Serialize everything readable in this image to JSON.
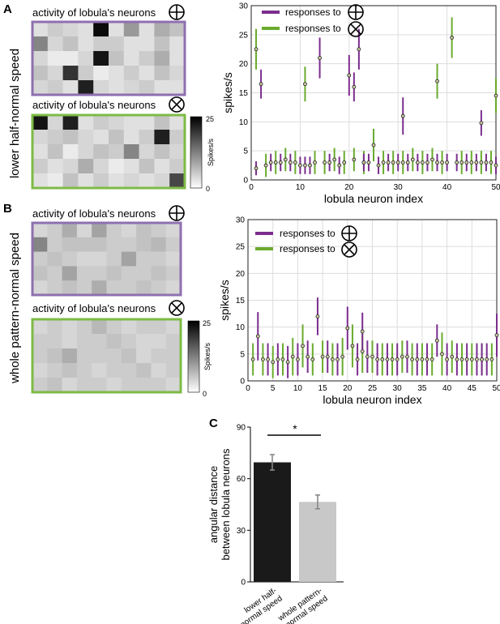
{
  "panels": {
    "a": {
      "letter": "A",
      "row_label": "lower half-normal speed"
    },
    "b": {
      "letter": "B",
      "row_label": "whole pattern-normal speed"
    },
    "c": {
      "letter": "C"
    }
  },
  "colors": {
    "purple": "#7b2d8e",
    "green": "#6aab2e",
    "dark_bar": "#1a1a1a",
    "light_bar": "#c8c8c8"
  },
  "heatmap_titles": {
    "plus": "activity of lobula's neurons",
    "cross": "activity of lobula's neurons"
  },
  "colorbar": {
    "label": "Spikes/s",
    "max_label": "25",
    "min_label": "0"
  },
  "legend": {
    "plus": "responses to",
    "cross": "responses to"
  },
  "chart_data": [
    {
      "id": "A_heatmap_plus",
      "type": "heatmap",
      "rows": 5,
      "cols": 10,
      "vmin": 0,
      "vmax": 25,
      "values": [
        [
          3,
          5,
          4,
          3,
          24,
          3,
          10,
          3,
          8,
          6
        ],
        [
          12,
          4,
          6,
          3,
          5,
          5,
          3,
          3,
          6,
          3
        ],
        [
          4,
          2,
          2,
          4,
          23,
          6,
          3,
          5,
          8,
          3
        ],
        [
          6,
          4,
          20,
          5,
          2,
          3,
          5,
          3,
          6,
          4
        ],
        [
          4,
          5,
          3,
          22,
          4,
          3,
          4,
          5,
          3,
          3
        ]
      ]
    },
    {
      "id": "A_heatmap_cross",
      "type": "heatmap",
      "rows": 5,
      "cols": 10,
      "vmin": 0,
      "vmax": 25,
      "values": [
        [
          23,
          4,
          22,
          3,
          5,
          4,
          3,
          3,
          6,
          3
        ],
        [
          4,
          5,
          6,
          4,
          3,
          6,
          3,
          5,
          22,
          5
        ],
        [
          3,
          6,
          2,
          4,
          6,
          5,
          12,
          4,
          6,
          4
        ],
        [
          5,
          3,
          4,
          8,
          4,
          2,
          3,
          6,
          3,
          5
        ],
        [
          3,
          2,
          6,
          3,
          5,
          3,
          4,
          3,
          4,
          18
        ]
      ]
    },
    {
      "id": "B_heatmap_plus",
      "type": "heatmap",
      "rows": 5,
      "cols": 10,
      "vmin": 0,
      "vmax": 25,
      "values": [
        [
          4,
          5,
          8,
          4,
          9,
          5,
          4,
          6,
          5,
          4
        ],
        [
          12,
          5,
          6,
          6,
          6,
          5,
          5,
          6,
          7,
          5
        ],
        [
          5,
          6,
          5,
          4,
          4,
          5,
          9,
          5,
          5,
          4
        ],
        [
          6,
          5,
          9,
          5,
          5,
          6,
          5,
          5,
          6,
          5
        ],
        [
          4,
          5,
          6,
          5,
          8,
          5,
          5,
          6,
          5,
          4
        ]
      ]
    },
    {
      "id": "B_heatmap_cross",
      "type": "heatmap",
      "rows": 5,
      "cols": 10,
      "vmin": 0,
      "vmax": 25,
      "values": [
        [
          4,
          5,
          4,
          5,
          7,
          5,
          4,
          5,
          5,
          4
        ],
        [
          5,
          5,
          4,
          5,
          5,
          6,
          5,
          4,
          4,
          5
        ],
        [
          5,
          6,
          8,
          5,
          5,
          5,
          6,
          4,
          5,
          5
        ],
        [
          4,
          5,
          6,
          5,
          4,
          5,
          5,
          6,
          4,
          5
        ],
        [
          5,
          6,
          4,
          5,
          5,
          4,
          5,
          5,
          5,
          4
        ]
      ]
    },
    {
      "id": "A_scatter",
      "type": "scatter",
      "xlabel": "lobula neuron index",
      "ylabel": "spikes/s",
      "xlim": [
        0,
        50
      ],
      "ylim": [
        0,
        30
      ],
      "xticks": [
        0,
        10,
        20,
        30,
        40,
        50
      ],
      "yticks": [
        0,
        5,
        10,
        15,
        20,
        25,
        30
      ],
      "series": [
        {
          "name": "responses to plus",
          "color": "purple",
          "x": [
            1,
            2,
            4,
            6,
            8,
            10,
            11,
            12,
            14,
            16,
            18,
            20,
            21,
            22,
            23,
            24,
            26,
            28,
            30,
            31,
            32,
            34,
            36,
            38,
            40,
            42,
            44,
            46,
            47,
            48,
            50
          ],
          "y": [
            2,
            16.5,
            3,
            3,
            3,
            2.5,
            2.5,
            2.5,
            21,
            3,
            2.5,
            18,
            16,
            22.5,
            3,
            3,
            2.5,
            3,
            3,
            11,
            3,
            3,
            3,
            3,
            3,
            3,
            3,
            3,
            9.8,
            3,
            2.5
          ],
          "err": [
            1.2,
            2.5,
            1.5,
            1.5,
            1.5,
            1.5,
            1.5,
            1.5,
            3.5,
            1.5,
            1.5,
            3.5,
            2.5,
            3.5,
            1.5,
            1.5,
            1.5,
            1.5,
            1.5,
            3.2,
            1.5,
            1.5,
            1.5,
            1.5,
            1.5,
            1.5,
            1.5,
            1.5,
            2.2,
            1.5,
            1.5
          ]
        },
        {
          "name": "responses to cross",
          "color": "green",
          "x": [
            1,
            3,
            5,
            7,
            9,
            11,
            13,
            15,
            17,
            19,
            21,
            23,
            25,
            27,
            29,
            31,
            33,
            35,
            37,
            38,
            39,
            41,
            43,
            45,
            47,
            49,
            50
          ],
          "y": [
            22.5,
            2.5,
            3,
            3.5,
            3,
            16.5,
            3,
            3,
            3.5,
            3,
            3.5,
            3,
            6,
            3,
            3,
            3,
            3.5,
            3,
            3.5,
            17,
            3,
            24.5,
            3,
            3,
            3,
            3,
            14.5
          ],
          "err": [
            3.5,
            2,
            2,
            2,
            2,
            3,
            2,
            2,
            2,
            2,
            2,
            2,
            2.8,
            2,
            2,
            2,
            2,
            2,
            2,
            3,
            2,
            3.5,
            2,
            2,
            2,
            2,
            3
          ]
        }
      ]
    },
    {
      "id": "B_scatter",
      "type": "scatter",
      "xlabel": "lobula neuron index",
      "ylabel": "spikes/s",
      "xlim": [
        0,
        50
      ],
      "ylim": [
        0,
        30
      ],
      "xticks": [
        0,
        5,
        10,
        15,
        20,
        25,
        30,
        35,
        40,
        45,
        50
      ],
      "yticks": [
        0,
        5,
        10,
        15,
        20,
        25,
        30
      ],
      "series": [
        {
          "name": "responses to plus",
          "color": "purple",
          "x": [
            2,
            4,
            6,
            8,
            10,
            12,
            14,
            16,
            18,
            20,
            22,
            23,
            24,
            26,
            28,
            30,
            32,
            34,
            36,
            38,
            40,
            42,
            44,
            46,
            47,
            48,
            50
          ],
          "y": [
            8.3,
            4,
            4,
            3.5,
            4,
            4.5,
            12,
            4.5,
            4,
            9.8,
            4,
            9.2,
            4.5,
            4,
            4,
            4,
            4.5,
            4,
            4,
            7.5,
            4,
            4,
            4,
            4,
            4,
            4,
            8.5
          ],
          "err": [
            4.5,
            3,
            3,
            3,
            3,
            3,
            3.5,
            3,
            3,
            4,
            3,
            3.5,
            3,
            3,
            3,
            3,
            3,
            3,
            3,
            3,
            3,
            3,
            3,
            3,
            3,
            3,
            4
          ]
        },
        {
          "name": "responses to cross",
          "color": "green",
          "x": [
            1,
            3,
            5,
            7,
            9,
            11,
            13,
            15,
            17,
            19,
            21,
            23,
            25,
            27,
            29,
            31,
            33,
            35,
            37,
            39,
            41,
            43,
            45,
            47,
            49
          ],
          "y": [
            4,
            4,
            3.5,
            4,
            4.5,
            6.5,
            4,
            4.5,
            4,
            4.5,
            6.5,
            5.5,
            4.5,
            4,
            4,
            4.5,
            4,
            4,
            4,
            5,
            4.5,
            4,
            4,
            4,
            4
          ],
          "err": [
            3,
            3,
            3,
            3,
            3.5,
            4,
            3,
            3,
            3,
            3.5,
            4,
            4,
            3,
            3,
            3,
            3,
            3,
            3,
            3,
            4,
            3,
            3,
            3,
            3,
            3
          ]
        }
      ]
    },
    {
      "id": "C_bar",
      "type": "bar",
      "ylabel": "angular distance between lobula neurons",
      "categories": [
        "lower half-normal speed",
        "whole pattern-normal speed"
      ],
      "category_lines": [
        [
          "lower half-",
          "normal speed"
        ],
        [
          "whole pattern-",
          "normal speed"
        ]
      ],
      "values": [
        69.5,
        46.5
      ],
      "err": [
        4.5,
        4
      ],
      "bar_colors": [
        "dark_bar",
        "light_bar"
      ],
      "ylim": [
        0,
        90
      ],
      "yticks": [
        0,
        30,
        60,
        90
      ],
      "significance": "*"
    }
  ]
}
